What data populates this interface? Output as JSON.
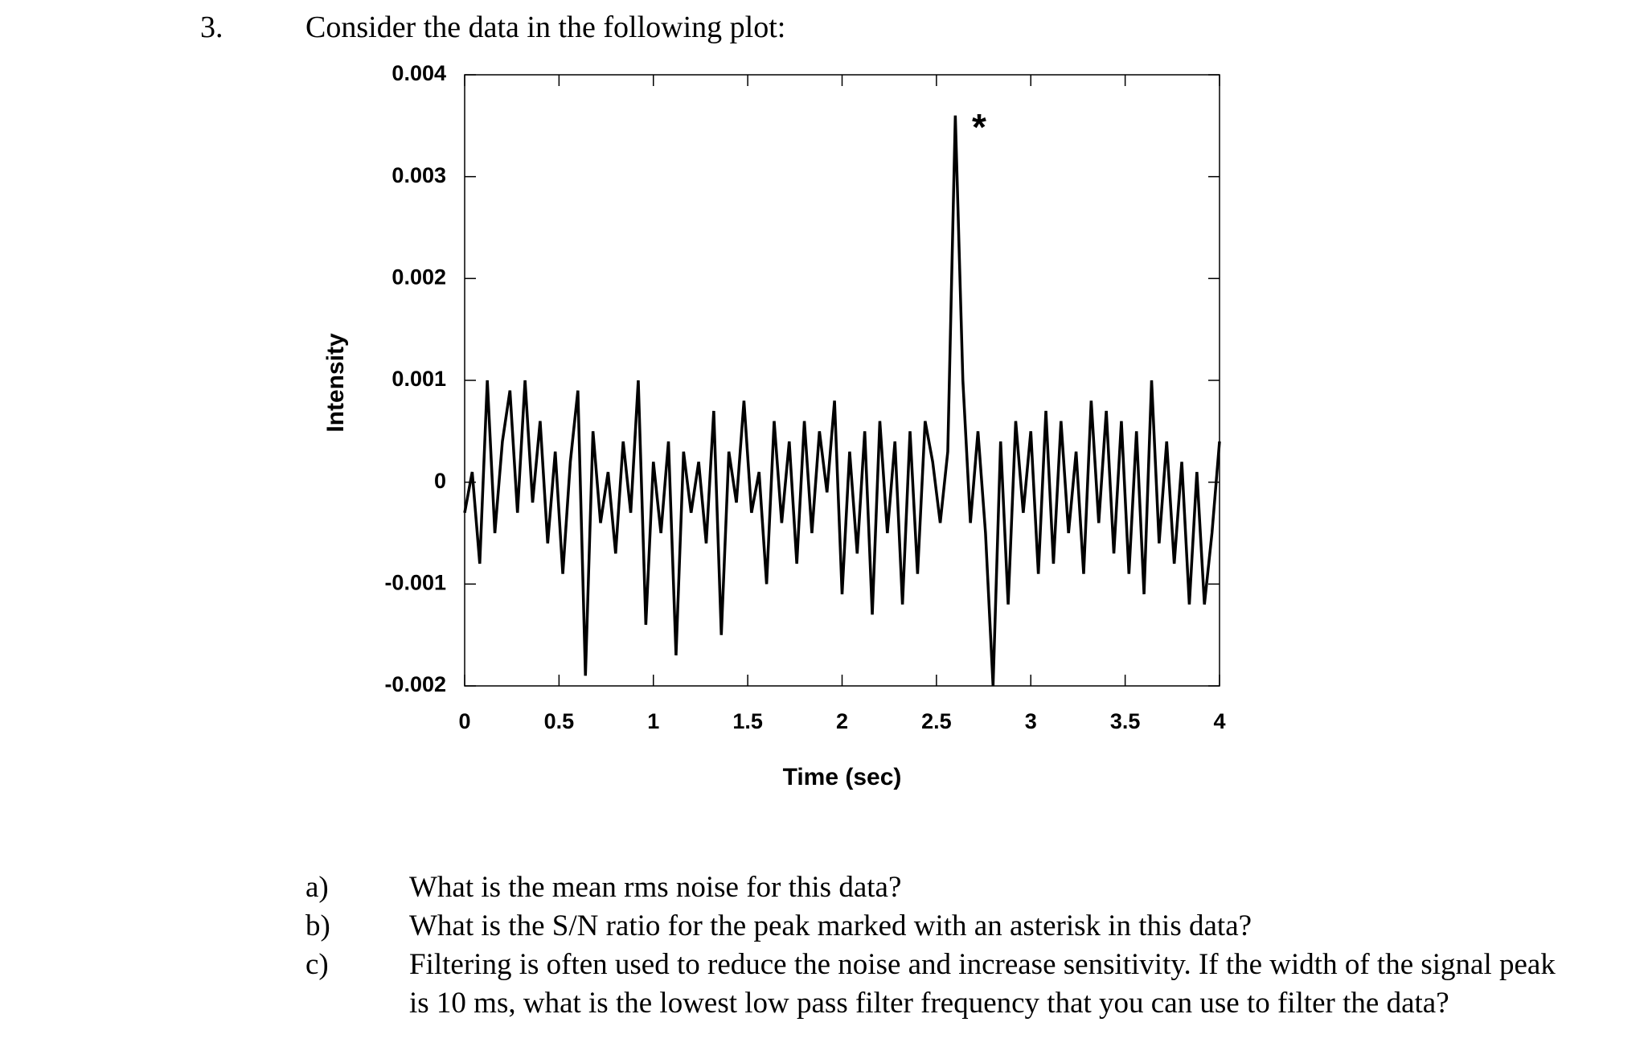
{
  "number": "3.",
  "prompt": "Consider the data in the following plot:",
  "chart_data": {
    "type": "line",
    "x_label": "Time (sec)",
    "y_label": "Intensity",
    "annotation": "*",
    "color": "#000000",
    "xlim": [
      0,
      4
    ],
    "xticks": [
      0,
      0.5,
      1,
      1.5,
      2,
      2.5,
      3,
      3.5,
      4
    ],
    "ylim": [
      -0.002,
      0.004
    ],
    "yticks": [
      -0.002,
      -0.001,
      0,
      0.001,
      0.002,
      0.003,
      0.004
    ],
    "x": [
      0,
      0.04,
      0.08,
      0.12,
      0.16,
      0.2,
      0.24,
      0.28,
      0.32,
      0.36,
      0.4,
      0.44,
      0.48,
      0.52,
      0.56,
      0.6,
      0.64,
      0.68,
      0.72,
      0.76,
      0.8,
      0.84,
      0.88,
      0.92,
      0.96,
      1,
      1.04,
      1.08,
      1.12,
      1.16,
      1.2,
      1.24,
      1.28,
      1.32,
      1.36,
      1.4,
      1.44,
      1.48,
      1.52,
      1.56,
      1.6,
      1.64,
      1.68,
      1.72,
      1.76,
      1.8,
      1.84,
      1.88,
      1.92,
      1.96,
      2,
      2.04,
      2.08,
      2.12,
      2.16,
      2.2,
      2.24,
      2.28,
      2.32,
      2.36,
      2.4,
      2.44,
      2.48,
      2.52,
      2.56,
      2.6,
      2.64,
      2.68,
      2.72,
      2.76,
      2.8,
      2.84,
      2.88,
      2.92,
      2.96,
      3,
      3.04,
      3.08,
      3.12,
      3.16,
      3.2,
      3.24,
      3.28,
      3.32,
      3.36,
      3.4,
      3.44,
      3.48,
      3.52,
      3.56,
      3.6,
      3.64,
      3.68,
      3.72,
      3.76,
      3.8,
      3.84,
      3.88,
      3.92,
      3.96,
      4
    ],
    "values": [
      -0.0003,
      0.0001,
      -0.0008,
      0.001,
      -0.0005,
      0.0004,
      0.0009,
      -0.0003,
      0.001,
      -0.0002,
      0.0006,
      -0.0006,
      0.0003,
      -0.0009,
      0.0002,
      0.0009,
      -0.0019,
      0.0005,
      -0.0004,
      0.0001,
      -0.0007,
      0.0004,
      -0.0003,
      0.001,
      -0.0014,
      0.0002,
      -0.0005,
      0.0004,
      -0.0017,
      0.0003,
      -0.0003,
      0.0002,
      -0.0006,
      0.0007,
      -0.0015,
      0.0003,
      -0.0002,
      0.0008,
      -0.0003,
      0.0001,
      -0.001,
      0.0006,
      -0.0004,
      0.0004,
      -0.0008,
      0.0006,
      -0.0005,
      0.0005,
      -0.0001,
      0.0008,
      -0.0011,
      0.0003,
      -0.0007,
      0.0005,
      -0.0013,
      0.0006,
      -0.0005,
      0.0004,
      -0.0012,
      0.0005,
      -0.0009,
      0.0006,
      0.0002,
      -0.0004,
      0.0003,
      0.0036,
      0.001,
      -0.0004,
      0.0005,
      -0.0005,
      -0.002,
      0.0004,
      -0.0012,
      0.0006,
      -0.0003,
      0.0005,
      -0.0009,
      0.0007,
      -0.0008,
      0.0006,
      -0.0005,
      0.0003,
      -0.0009,
      0.0008,
      -0.0004,
      0.0007,
      -0.0007,
      0.0006,
      -0.0009,
      0.0005,
      -0.0011,
      0.001,
      -0.0006,
      0.0004,
      -0.0008,
      0.0002,
      -0.0012,
      0.0001,
      -0.0012,
      -0.0005,
      0.0004
    ]
  },
  "questions": [
    {
      "label": "a)",
      "text": "What is the mean rms noise for this data?"
    },
    {
      "label": "b)",
      "text": "What is the S/N ratio for the peak marked with an asterisk in this data?"
    },
    {
      "label": "c)",
      "text": "Filtering is often used to reduce the noise and increase sensitivity.  If the width of the signal peak is 10 ms, what is the lowest low pass filter frequency that you can use to filter the data?"
    }
  ]
}
